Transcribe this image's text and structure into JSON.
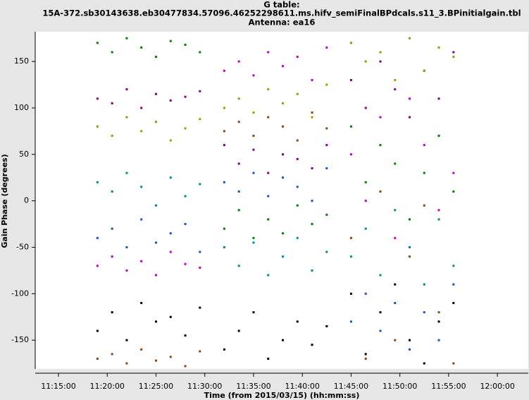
{
  "chart_data": {
    "type": "scatter",
    "title": [
      "G table:",
      "15A-372.sb30143638.eb30477834.57096.46252298611.ms.hifv_semiFinalBPdcals.s11_3.BPinitialgain.tbl",
      "Antenna: ea16"
    ],
    "xlabel": "Time (from 2015/03/15) (hh:mm:ss)",
    "ylabel": "Gain Phase (degrees)",
    "xlim": [
      "11:12:37",
      "12:03:10"
    ],
    "xticks": [
      "11:15:00",
      "11:20:00",
      "11:25:00",
      "11:30:00",
      "11:35:00",
      "11:40:00",
      "11:45:00",
      "11:50:00",
      "11:55:00",
      "12:00:00"
    ],
    "ylim": [
      -181,
      182
    ],
    "yticks": [
      -150,
      -100,
      -50,
      0,
      50,
      100,
      150
    ],
    "x": [
      "11:19:00",
      "11:20:30",
      "11:22:00",
      "11:23:30",
      "11:25:00",
      "11:26:30",
      "11:28:00",
      "11:29:30",
      "11:32:00",
      "11:33:30",
      "11:35:00",
      "11:36:30",
      "11:38:00",
      "11:39:30",
      "11:41:00",
      "11:42:30",
      "11:45:00",
      "11:46:30",
      "11:48:00",
      "11:49:30",
      "11:51:00",
      "11:52:30",
      "11:54:00",
      "11:55:30"
    ],
    "series": [
      {
        "color": "#000000",
        "values": [
          -140,
          -120,
          -150,
          -110,
          -130,
          -125,
          -145,
          -115,
          -160,
          -140,
          -120,
          -170,
          -150,
          -130,
          -155,
          -135,
          -100,
          -165,
          -120,
          -90,
          -150,
          -175,
          -130,
          -110
        ]
      },
      {
        "color": "#800080",
        "values": [
          110,
          105,
          120,
          100,
          115,
          108,
          112,
          118,
          60,
          40,
          55,
          30,
          50,
          45,
          35,
          60,
          130,
          100,
          150,
          120,
          90,
          140,
          110,
          160
        ]
      },
      {
        "color": "#008000",
        "values": [
          170,
          160,
          175,
          165,
          155,
          172,
          168,
          160,
          -30,
          -10,
          -40,
          -20,
          -35,
          -5,
          -25,
          -15,
          80,
          20,
          60,
          40,
          -20,
          30,
          70,
          10
        ]
      },
      {
        "color": "#008b8b",
        "values": [
          20,
          10,
          30,
          15,
          -5,
          25,
          5,
          18,
          -50,
          -70,
          -45,
          -80,
          -60,
          -40,
          -75,
          -55,
          -60,
          -30,
          -80,
          -10,
          -50,
          -90,
          -20,
          -70
        ]
      },
      {
        "color": "#9a9a00",
        "values": [
          80,
          70,
          90,
          75,
          85,
          65,
          78,
          88,
          100,
          110,
          95,
          120,
          105,
          115,
          90,
          125,
          170,
          150,
          160,
          130,
          175,
          140,
          165,
          155
        ]
      },
      {
        "color": "#1f4fbf",
        "values": [
          -40,
          -30,
          -50,
          -20,
          -45,
          -35,
          -25,
          -55,
          20,
          10,
          30,
          5,
          25,
          15,
          0,
          35,
          -130,
          -100,
          -140,
          -110,
          -160,
          -120,
          -150,
          -90
        ]
      },
      {
        "color": "#c000c0",
        "values": [
          -70,
          -60,
          -75,
          -65,
          -80,
          -55,
          -68,
          -72,
          140,
          150,
          135,
          160,
          145,
          155,
          130,
          165,
          50,
          0,
          90,
          -40,
          110,
          60,
          -10,
          30
        ]
      },
      {
        "color": "#8b4513",
        "values": [
          -170,
          -165,
          -175,
          -160,
          -172,
          -168,
          -178,
          -162,
          75,
          85,
          70,
          90,
          80,
          65,
          95,
          78,
          -40,
          -170,
          10,
          -150,
          -60,
          -5,
          -120,
          -175
        ]
      }
    ]
  }
}
